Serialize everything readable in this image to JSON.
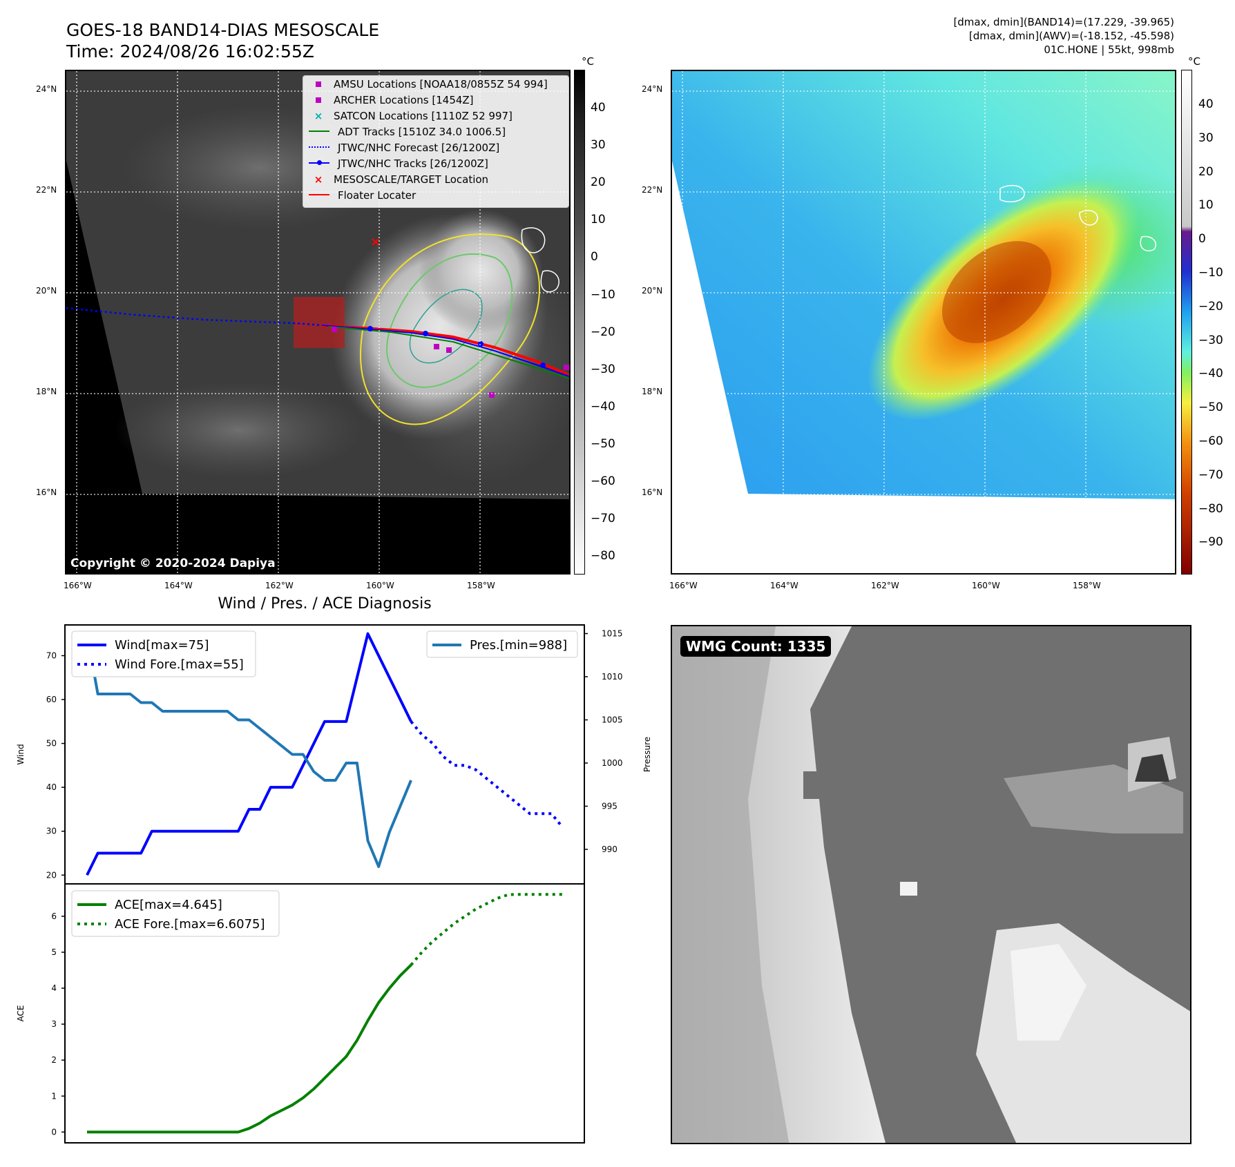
{
  "header": {
    "title_line1": "GOES-18 BAND14-DIAS MESOSCALE",
    "title_line2": "Time: 2024/08/26 16:02:55Z",
    "info_line1": "[dmax, dmin](BAND14)=(17.229, -39.965)",
    "info_line2": "[dmax, dmin](AWV)=(-18.152, -45.598)",
    "info_line3": "01C.HONE | 55kt, 998mb"
  },
  "map_left": {
    "copyright": "Copyright © 2020-2024 Dapiya",
    "lat_labels": [
      "24°N",
      "22°N",
      "20°N",
      "18°N",
      "16°N"
    ],
    "lon_labels": [
      "166°W",
      "164°W",
      "162°W",
      "160°W",
      "158°W"
    ],
    "colorbar_unit": "°C",
    "colorbar_ticks": [
      "40",
      "30",
      "20",
      "10",
      "0",
      "−10",
      "−20",
      "−30",
      "−40",
      "−50",
      "−60",
      "−70",
      "−80"
    ],
    "legend": [
      {
        "label": "AMSU Locations [NOAA18/0855Z 54 994]",
        "color": "#c000c0",
        "marker": "square"
      },
      {
        "label": "ARCHER Locations [1454Z]",
        "color": "#c000c0",
        "marker": "square"
      },
      {
        "label": "SATCON Locations [1110Z 52 997]",
        "color": "#00b0b0",
        "marker": "x"
      },
      {
        "label": "ADT Tracks [1510Z 34.0 1006.5]",
        "color": "#008000",
        "marker": "line"
      },
      {
        "label": "JTWC/NHC Forecast [26/1200Z]",
        "color": "#0000ff",
        "marker": "dotted"
      },
      {
        "label": "JTWC/NHC Tracks [26/1200Z]",
        "color": "#0000ff",
        "marker": "line-dot"
      },
      {
        "label": "MESOSCALE/TARGET Location",
        "color": "#ff0000",
        "marker": "x"
      },
      {
        "label": "Floater Locater",
        "color": "#ff0000",
        "marker": "line"
      }
    ]
  },
  "map_right": {
    "lat_labels": [
      "24°N",
      "22°N",
      "20°N",
      "18°N",
      "16°N"
    ],
    "lon_labels": [
      "166°W",
      "164°W",
      "162°W",
      "160°W",
      "158°W"
    ],
    "colorbar_unit": "°C",
    "colorbar_ticks": [
      "40",
      "30",
      "20",
      "10",
      "0",
      "−10",
      "−20",
      "−30",
      "−40",
      "−50",
      "−60",
      "−70",
      "−80",
      "−90"
    ]
  },
  "wmg": {
    "label": "WMG Count: 1335"
  },
  "chart_data": [
    {
      "type": "line",
      "title": "Wind / Pres. / ACE Diagnosis",
      "ylabel": "Wind",
      "ylabel_right": "Pressure",
      "ylim": [
        18,
        77
      ],
      "ylim_right": [
        986,
        1016
      ],
      "yticks": [
        20,
        30,
        40,
        50,
        60,
        70
      ],
      "yticks_right": [
        990,
        995,
        1000,
        1005,
        1010,
        1015
      ],
      "legend_left": [
        "Wind[max=75]",
        "Wind Fore.[max=55]"
      ],
      "legend_right": [
        "Pres.[min=988]"
      ],
      "series": [
        {
          "name": "Wind[max=75]",
          "color": "#0000ff",
          "style": "solid",
          "axis": "left",
          "values": [
            20,
            25,
            25,
            25,
            25,
            25,
            30,
            30,
            30,
            30,
            30,
            30,
            30,
            30,
            30,
            35,
            35,
            40,
            40,
            40,
            45,
            50,
            55,
            55,
            55,
            65,
            75,
            70,
            65,
            60,
            55
          ]
        },
        {
          "name": "Wind Fore.[max=55]",
          "color": "#0000ff",
          "style": "dotted",
          "axis": "left",
          "x_offset": 30,
          "values": [
            55,
            52,
            50,
            47,
            45,
            45,
            44,
            42,
            40,
            38,
            36,
            34,
            34,
            34,
            31
          ]
        },
        {
          "name": "Pres.[min=988]",
          "color": "#1f77b4",
          "style": "solid",
          "axis": "right",
          "values": [
            1015,
            1008,
            1008,
            1008,
            1008,
            1007,
            1007,
            1006,
            1006,
            1006,
            1006,
            1006,
            1006,
            1006,
            1005,
            1005,
            1004,
            1003,
            1002,
            1001,
            1001,
            999,
            998,
            998,
            1000,
            1000,
            991,
            988,
            992,
            995,
            998
          ]
        }
      ]
    },
    {
      "type": "line",
      "ylabel": "ACE",
      "ylim": [
        -0.3,
        6.9
      ],
      "yticks": [
        0,
        1,
        2,
        3,
        4,
        5,
        6
      ],
      "legend": [
        "ACE[max=4.645]",
        "ACE Fore.[max=6.6075]"
      ],
      "series": [
        {
          "name": "ACE[max=4.645]",
          "color": "#008000",
          "style": "solid",
          "values": [
            0,
            0,
            0,
            0,
            0,
            0,
            0,
            0,
            0,
            0,
            0,
            0,
            0,
            0,
            0,
            0.1,
            0.25,
            0.45,
            0.6,
            0.75,
            0.95,
            1.2,
            1.5,
            1.8,
            2.1,
            2.55,
            3.1,
            3.6,
            4.0,
            4.35,
            4.645
          ]
        },
        {
          "name": "ACE Fore.[max=6.6075]",
          "color": "#008000",
          "style": "dotted",
          "x_offset": 30,
          "values": [
            4.645,
            5.0,
            5.3,
            5.55,
            5.8,
            6.0,
            6.2,
            6.35,
            6.5,
            6.6,
            6.6075,
            6.6075,
            6.6075,
            6.6075,
            6.6075
          ]
        }
      ]
    }
  ]
}
